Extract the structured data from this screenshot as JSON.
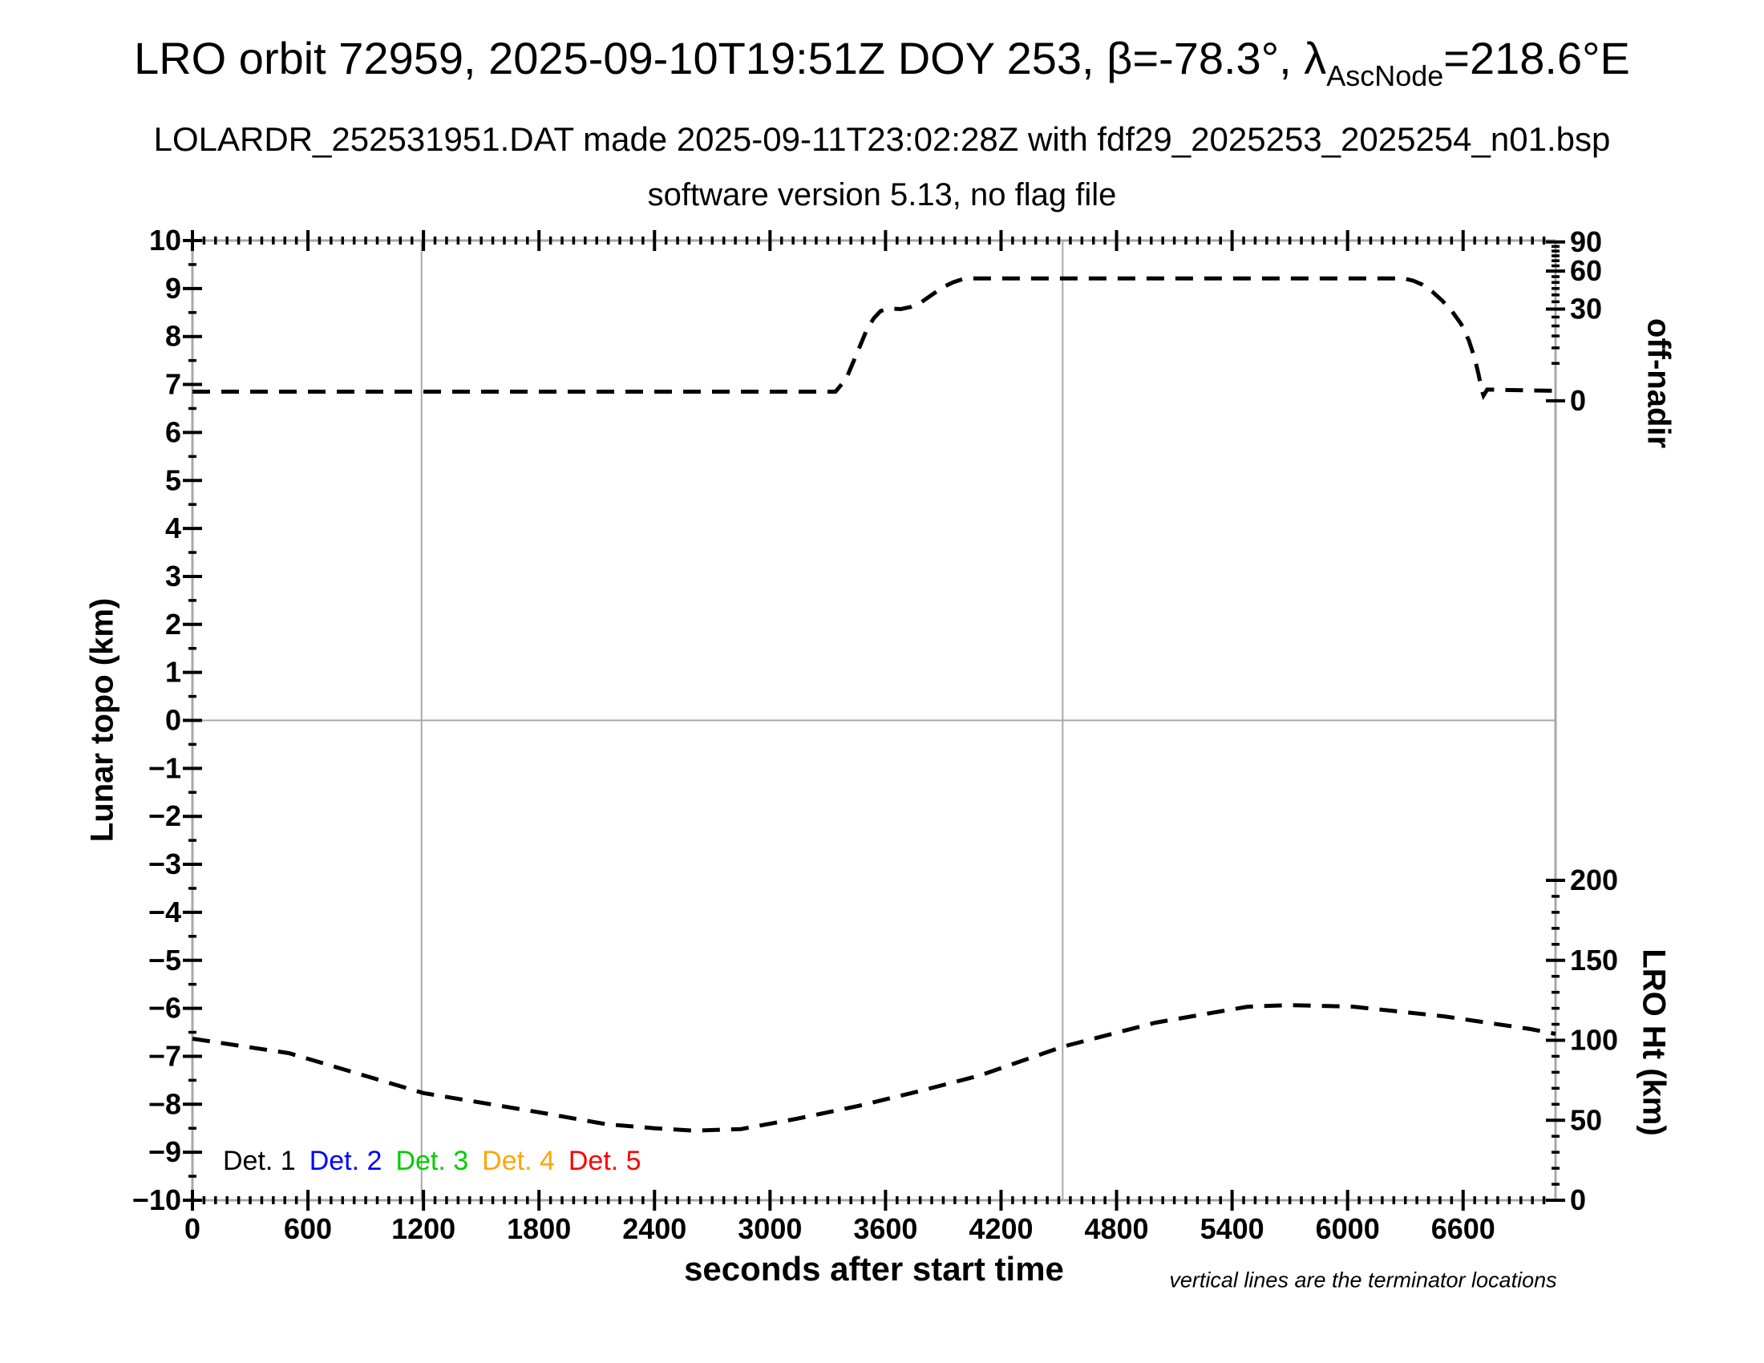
{
  "header": {
    "title_prefix": "LRO orbit 72959, 2025-09-10T19:51Z DOY 253, β=-78.3°, λ",
    "title_sub": "AscNode",
    "title_suffix": "=218.6°E",
    "subtitle": "LOLARDR_252531951.DAT made 2025-09-11T23:02:28Z with fdf29_2025253_2025254_n01.bsp",
    "software_line": "software version 5.13, no flag file"
  },
  "footer": {
    "xaxis_title": "seconds after start time",
    "note": "vertical lines are the terminator locations"
  },
  "legend": [
    {
      "label": "Det. 1",
      "color": "#000000"
    },
    {
      "label": "Det. 2",
      "color": "#0000ff"
    },
    {
      "label": "Det. 3",
      "color": "#00cc00"
    },
    {
      "label": "Det. 4",
      "color": "#ffa500"
    },
    {
      "label": "Det. 5",
      "color": "#ff0000"
    }
  ],
  "chart_data": {
    "type": "line",
    "title": "LRO orbit 72959, 2025-09-10T19:51Z DOY 253, β=-78.3°, λAscNode=218.6°E",
    "grid": "zero-line and terminator verticals only",
    "box_color": "#a8a8a8",
    "tick_color": "#000000",
    "dash_pattern": "22 14",
    "x_axis": {
      "label": "seconds after start time",
      "min": 0,
      "max": 7080,
      "major_tick_values": [
        0,
        600,
        1200,
        1800,
        2400,
        3000,
        3600,
        4200,
        4800,
        5400,
        6000,
        6600
      ],
      "major_tick_labels": [
        "0",
        "600",
        "1200",
        "1800",
        "2400",
        "3000",
        "3600",
        "4200",
        "4800",
        "5400",
        "6000",
        "6600"
      ],
      "minor_tick_step": 60
    },
    "y_left_axis": {
      "label": "Lunar topo (km)",
      "min": -10,
      "max": 10,
      "tick_values": [
        10,
        9,
        8,
        7,
        6,
        5,
        4,
        3,
        2,
        1,
        0,
        -1,
        -2,
        -3,
        -4,
        -5,
        -6,
        -7,
        -8,
        -9,
        -10
      ],
      "tick_labels": [
        "10",
        "9",
        "8",
        "7",
        "6",
        "5",
        "4",
        "3",
        "2",
        "1",
        "0",
        "−1",
        "−2",
        "−3",
        "−4",
        "−5",
        "−6",
        "−7",
        "−8",
        "−9",
        "−10"
      ],
      "minor_tick_step": 0.5
    },
    "y_right_off_nadir": {
      "label": "off-nadir",
      "tick_values": [
        90,
        60,
        30,
        0
      ],
      "tick_labels": [
        "90",
        "60",
        "30",
        "0"
      ],
      "minor_tick_step_deg": 5,
      "scale": "position proportional to sqrt(angle/90)",
      "zero_deg_left_units": 6.66,
      "ninety_deg_left_units": 9.97
    },
    "y_right_lro_ht": {
      "label": "LRO Ht (km)",
      "tick_values": [
        200,
        150,
        100,
        50,
        0
      ],
      "tick_labels": [
        "200",
        "150",
        "100",
        "50",
        "0"
      ],
      "minor_tick_step_km": 10,
      "zero_km_left_units": -10,
      "km_per_left_unit": 30
    },
    "terminator_lines_seconds": [
      1190,
      4520
    ],
    "series": [
      {
        "id": "off-nadir-curve",
        "name": "spacecraft off-nadir angle (deg)",
        "axis": "off_nadir_deg",
        "style": "dashed",
        "color": "#000000",
        "points": [
          [
            0,
            0.3
          ],
          [
            3340,
            0.3
          ],
          [
            3395,
            1.7
          ],
          [
            3435,
            5.7
          ],
          [
            3470,
            11.2
          ],
          [
            3505,
            18.6
          ],
          [
            3540,
            24.4
          ],
          [
            3575,
            28.8
          ],
          [
            3620,
            30.4
          ],
          [
            3680,
            30.0
          ],
          [
            3730,
            31.4
          ],
          [
            3785,
            34.6
          ],
          [
            3840,
            40.0
          ],
          [
            3900,
            46.2
          ],
          [
            3950,
            50.0
          ],
          [
            4000,
            52.8
          ],
          [
            4040,
            53.5
          ],
          [
            6290,
            53.5
          ],
          [
            6340,
            51.5
          ],
          [
            6390,
            48.0
          ],
          [
            6440,
            42.5
          ],
          [
            6490,
            36.0
          ],
          [
            6540,
            29.0
          ],
          [
            6590,
            21.0
          ],
          [
            6630,
            13.0
          ],
          [
            6660,
            6.5
          ],
          [
            6680,
            2.5
          ],
          [
            6697,
            0.4
          ],
          [
            6706,
            0.1
          ],
          [
            6725,
            0.45
          ],
          [
            7080,
            0.35
          ]
        ]
      },
      {
        "id": "lro-ht-curve",
        "name": "LRO height above surface (km)",
        "axis": "lro_ht_km",
        "style": "dashed",
        "color": "#000000",
        "points": [
          [
            0,
            101
          ],
          [
            500,
            92
          ],
          [
            1200,
            67
          ],
          [
            1800,
            55
          ],
          [
            2150,
            47.5
          ],
          [
            2400,
            45
          ],
          [
            2600,
            43.5
          ],
          [
            2850,
            44.5
          ],
          [
            3140,
            51
          ],
          [
            3460,
            59
          ],
          [
            3770,
            68
          ],
          [
            4090,
            78
          ],
          [
            4520,
            96
          ],
          [
            5000,
            111
          ],
          [
            5480,
            121
          ],
          [
            5700,
            122
          ],
          [
            6030,
            121
          ],
          [
            6500,
            115
          ],
          [
            6950,
            107
          ],
          [
            7080,
            104
          ]
        ]
      }
    ]
  }
}
